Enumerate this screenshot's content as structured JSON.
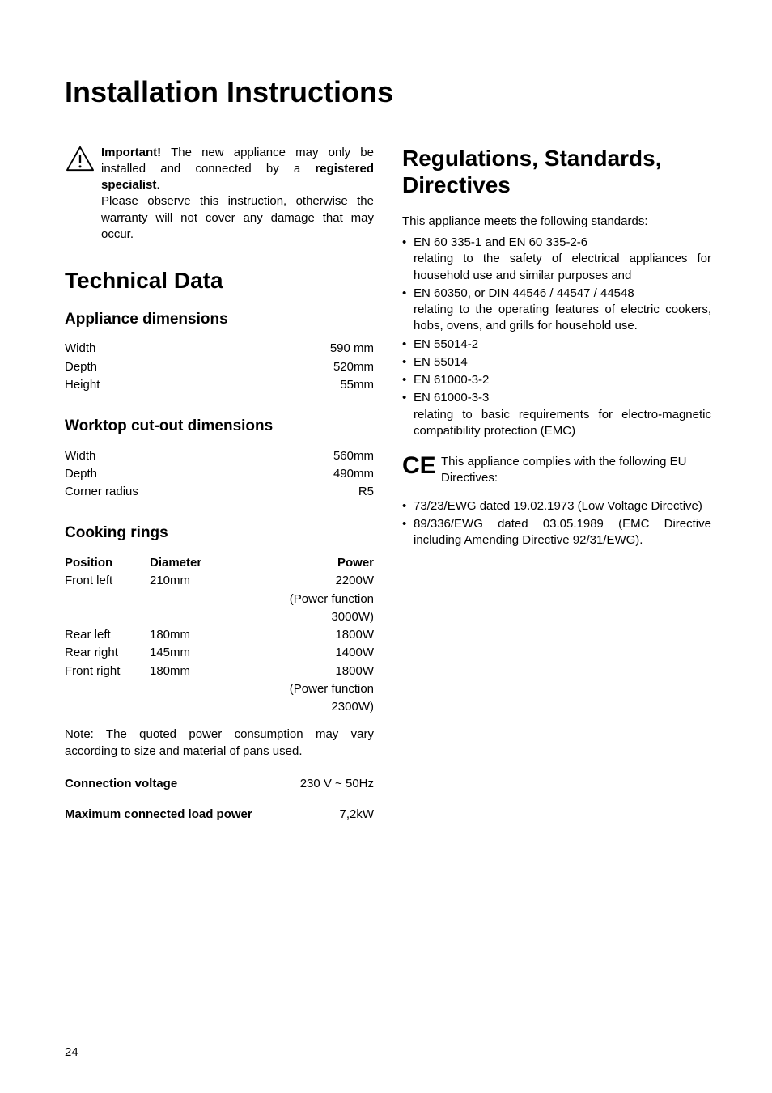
{
  "title": "Installation Instructions",
  "warning": {
    "bold_lead": "Important!",
    "text1": " The new appliance may only be installed and connected by a ",
    "bold_mid": "registered specialist",
    "text2": ".",
    "para2": "Please observe this instruction, otherwise the warranty will not cover any damage that may occur."
  },
  "technical": {
    "heading": "Technical Data",
    "appliance_dim": {
      "heading": "Appliance dimensions",
      "rows": [
        {
          "label": "Width",
          "value": "590 mm"
        },
        {
          "label": "Depth",
          "value": "520mm"
        },
        {
          "label": "Height",
          "value": "55mm"
        }
      ]
    },
    "worktop": {
      "heading": "Worktop cut-out dimensions",
      "rows": [
        {
          "label": "Width",
          "value": "560mm"
        },
        {
          "label": "Depth",
          "value": "490mm"
        },
        {
          "label": "Corner radius",
          "value": "R5"
        }
      ]
    },
    "rings": {
      "heading": "Cooking rings",
      "header": {
        "pos": "Position",
        "dia": "Diameter",
        "pow": "Power"
      },
      "rows": [
        {
          "pos": "Front left",
          "dia": "210mm",
          "pow": "2200W"
        },
        {
          "pos": "",
          "dia": "",
          "pow": "(Power function"
        },
        {
          "pos": "",
          "dia": "",
          "pow": "3000W)"
        },
        {
          "pos": "Rear left",
          "dia": "180mm",
          "pow": "1800W"
        },
        {
          "pos": "Rear right",
          "dia": "145mm",
          "pow": "1400W"
        },
        {
          "pos": "Front right",
          "dia": "180mm",
          "pow": "1800W"
        },
        {
          "pos": "",
          "dia": "",
          "pow": "(Power function"
        },
        {
          "pos": "",
          "dia": "",
          "pow": "2300W)"
        }
      ],
      "note": "Note: The quoted power consumption may vary according to size and material of pans used.",
      "voltage": {
        "label": "Connection voltage",
        "value": "230 V ~ 50Hz"
      },
      "load": {
        "label": "Maximum connected load power",
        "value": "7,2kW"
      }
    }
  },
  "regs": {
    "heading": "Regulations, Standards, Directives",
    "intro": "This appliance meets the following standards:",
    "standards": [
      {
        "main": "EN 60 335-1 and EN 60 335-2-6",
        "sub": "relating to the safety of electrical appliances for household use and similar purposes and"
      },
      {
        "main": "EN 60350, or DIN 44546 / 44547 / 44548",
        "sub": "relating to the operating features of electric cookers, hobs, ovens, and grills for household use."
      },
      {
        "main": "EN 55014-2",
        "sub": ""
      },
      {
        "main": "EN 55014",
        "sub": ""
      },
      {
        "main": "EN 61000-3-2",
        "sub": ""
      },
      {
        "main": "EN 61000-3-3",
        "sub": "relating to basic requirements for electro-magnetic compatibility protection (EMC)"
      }
    ],
    "ce_text": "This appliance complies with the following EU Directives:",
    "directives": [
      {
        "main": "73/23/EWG dated 19.02.1973 (Low Voltage Directive)"
      },
      {
        "main": "89/336/EWG dated 03.05.1989 (EMC Directive including Amending Directive 92/31/EWG)."
      }
    ]
  },
  "page_number": "24"
}
